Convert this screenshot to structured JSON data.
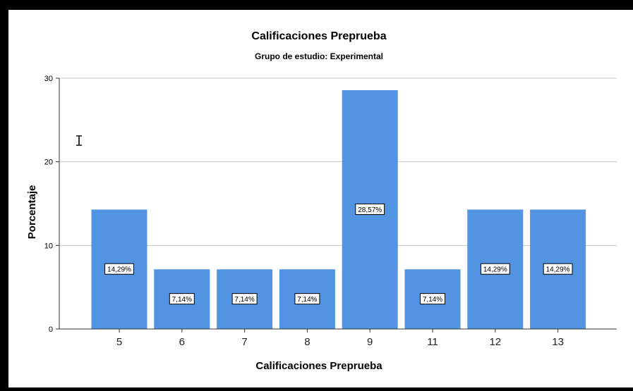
{
  "chart_data": {
    "type": "bar",
    "title": "Calificaciones Preprueba",
    "subtitle": "Grupo de estudio: Experimental",
    "xlabel": "Calificaciones Preprueba",
    "ylabel": "Porcentaje",
    "categories": [
      "5",
      "6",
      "7",
      "8",
      "9",
      "11",
      "12",
      "13"
    ],
    "values": [
      14.29,
      7.14,
      7.14,
      7.14,
      28.57,
      7.14,
      14.29,
      14.29
    ],
    "data_labels": [
      "14,29%",
      "7,14%",
      "7,14%",
      "7,14%",
      "28,57%",
      "7,14%",
      "14,29%",
      "14,29%"
    ],
    "y_ticks": [
      "0",
      "10",
      "20",
      "30"
    ],
    "ylim": [
      0,
      30
    ],
    "grid": true,
    "bar_color": "#5294e2"
  }
}
